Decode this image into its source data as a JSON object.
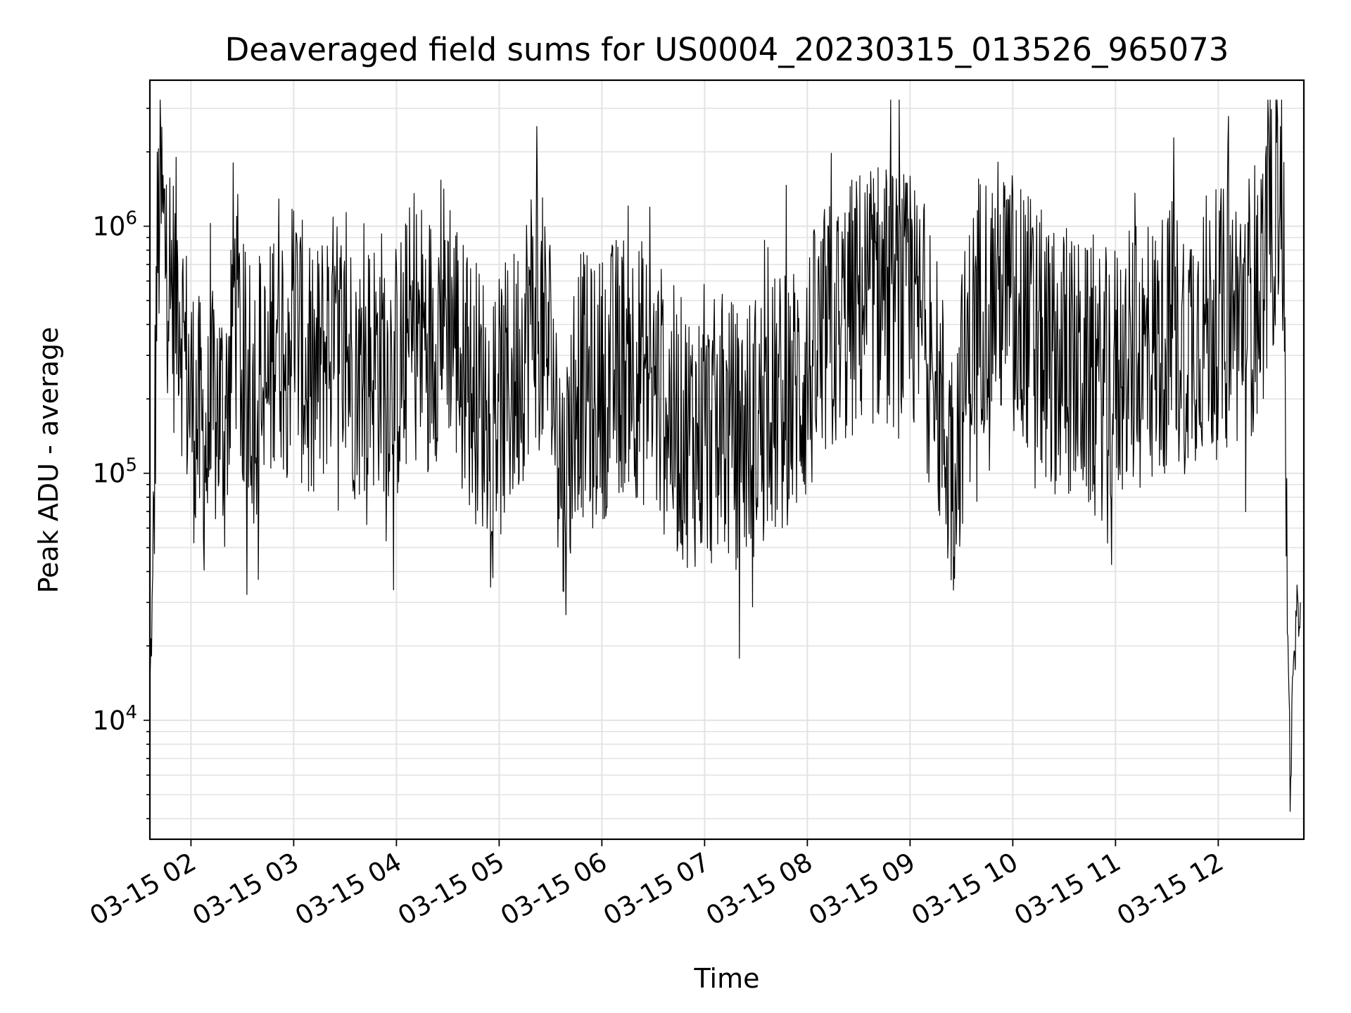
{
  "chart_data": {
    "type": "line",
    "title": "Deaveraged field sums for US0004_20230315_013526_965073",
    "xlabel": "Time",
    "ylabel": "Peak ADU - average",
    "yscale": "log",
    "ylim": [
      3300,
      3900000
    ],
    "xlim": [
      "2023-03-15 01:36",
      "2023-03-15 12:50"
    ],
    "grid": true,
    "line_color": "#000000",
    "x_ticks": [
      {
        "t": "2023-03-15 02:00",
        "label": "03-15 02"
      },
      {
        "t": "2023-03-15 03:00",
        "label": "03-15 03"
      },
      {
        "t": "2023-03-15 04:00",
        "label": "03-15 04"
      },
      {
        "t": "2023-03-15 05:00",
        "label": "03-15 05"
      },
      {
        "t": "2023-03-15 06:00",
        "label": "03-15 06"
      },
      {
        "t": "2023-03-15 07:00",
        "label": "03-15 07"
      },
      {
        "t": "2023-03-15 08:00",
        "label": "03-15 08"
      },
      {
        "t": "2023-03-15 09:00",
        "label": "03-15 09"
      },
      {
        "t": "2023-03-15 10:00",
        "label": "03-15 10"
      },
      {
        "t": "2023-03-15 11:00",
        "label": "03-15 11"
      },
      {
        "t": "2023-03-15 12:00",
        "label": "03-15 12"
      }
    ],
    "y_ticks": [
      {
        "value": 10000,
        "base": "10",
        "exp": "4"
      },
      {
        "value": 100000,
        "base": "10",
        "exp": "5"
      },
      {
        "value": 1000000,
        "base": "10",
        "exp": "6"
      }
    ],
    "series": [
      {
        "points": [
          [
            "2023-03-15 01:36",
            13000
          ],
          [
            "2023-03-15 01:38",
            40000
          ],
          [
            "2023-03-15 01:40",
            600000
          ],
          [
            "2023-03-15 01:42",
            1400000
          ],
          [
            "2023-03-15 01:44",
            900000
          ],
          [
            "2023-03-15 01:47",
            700000
          ],
          [
            "2023-03-15 01:50",
            500000
          ],
          [
            "2023-03-15 01:53",
            600000
          ],
          [
            "2023-03-15 01:56",
            300000
          ],
          [
            "2023-03-15 02:00",
            200000
          ],
          [
            "2023-03-15 02:05",
            150000
          ],
          [
            "2023-03-15 02:10",
            120000
          ],
          [
            "2023-03-15 02:15",
            200000
          ],
          [
            "2023-03-15 02:20",
            150000
          ],
          [
            "2023-03-15 02:25",
            600000
          ],
          [
            "2023-03-15 02:30",
            250000
          ],
          [
            "2023-03-15 02:35",
            200000
          ],
          [
            "2023-03-15 02:40",
            250000
          ],
          [
            "2023-03-15 02:45",
            200000
          ],
          [
            "2023-03-15 02:50",
            500000
          ],
          [
            "2023-03-15 02:55",
            300000
          ],
          [
            "2023-03-15 03:00",
            450000
          ],
          [
            "2023-03-15 03:10",
            200000
          ],
          [
            "2023-03-15 03:20",
            350000
          ],
          [
            "2023-03-15 03:30",
            300000
          ],
          [
            "2023-03-15 03:40",
            250000
          ],
          [
            "2023-03-15 03:50",
            300000
          ],
          [
            "2023-03-15 04:00",
            250000
          ],
          [
            "2023-03-15 04:10",
            400000
          ],
          [
            "2023-03-15 04:20",
            350000
          ],
          [
            "2023-03-15 04:30",
            500000
          ],
          [
            "2023-03-15 04:40",
            250000
          ],
          [
            "2023-03-15 04:50",
            200000
          ],
          [
            "2023-03-15 05:00",
            180000
          ],
          [
            "2023-03-15 05:10",
            250000
          ],
          [
            "2023-03-15 05:20",
            500000
          ],
          [
            "2023-03-15 05:30",
            300000
          ],
          [
            "2023-03-15 05:38",
            80000
          ],
          [
            "2023-03-15 05:45",
            250000
          ],
          [
            "2023-03-15 05:55",
            200000
          ],
          [
            "2023-03-15 06:05",
            250000
          ],
          [
            "2023-03-15 06:15",
            300000
          ],
          [
            "2023-03-15 06:25",
            250000
          ],
          [
            "2023-03-15 06:35",
            200000
          ],
          [
            "2023-03-15 06:45",
            150000
          ],
          [
            "2023-03-15 07:00",
            140000
          ],
          [
            "2023-03-15 07:10",
            150000
          ],
          [
            "2023-03-15 07:20",
            140000
          ],
          [
            "2023-03-15 07:30",
            160000
          ],
          [
            "2023-03-15 07:40",
            180000
          ],
          [
            "2023-03-15 07:50",
            200000
          ],
          [
            "2023-03-15 08:00",
            250000
          ],
          [
            "2023-03-15 08:10",
            350000
          ],
          [
            "2023-03-15 08:20",
            400000
          ],
          [
            "2023-03-15 08:30",
            500000
          ],
          [
            "2023-03-15 08:40",
            550000
          ],
          [
            "2023-03-15 08:50",
            500000
          ],
          [
            "2023-03-15 09:00",
            450000
          ],
          [
            "2023-03-15 09:10",
            350000
          ],
          [
            "2023-03-15 09:20",
            150000
          ],
          [
            "2023-03-15 09:25",
            100000
          ],
          [
            "2023-03-15 09:30",
            200000
          ],
          [
            "2023-03-15 09:40",
            500000
          ],
          [
            "2023-03-15 09:50",
            550000
          ],
          [
            "2023-03-15 10:00",
            500000
          ],
          [
            "2023-03-15 10:10",
            400000
          ],
          [
            "2023-03-15 10:20",
            300000
          ],
          [
            "2023-03-15 10:30",
            280000
          ],
          [
            "2023-03-15 10:40",
            250000
          ],
          [
            "2023-03-15 10:50",
            220000
          ],
          [
            "2023-03-15 11:00",
            250000
          ],
          [
            "2023-03-15 11:10",
            280000
          ],
          [
            "2023-03-15 11:20",
            300000
          ],
          [
            "2023-03-15 11:30",
            350000
          ],
          [
            "2023-03-15 11:40",
            350000
          ],
          [
            "2023-03-15 11:50",
            400000
          ],
          [
            "2023-03-15 12:00",
            400000
          ],
          [
            "2023-03-15 12:10",
            450000
          ],
          [
            "2023-03-15 12:20",
            500000
          ],
          [
            "2023-03-15 12:30",
            800000
          ],
          [
            "2023-03-15 12:36",
            1800000
          ],
          [
            "2023-03-15 12:38",
            1000000
          ],
          [
            "2023-03-15 12:40",
            40000
          ],
          [
            "2023-03-15 12:42",
            6000
          ],
          [
            "2023-03-15 12:44",
            15000
          ],
          [
            "2023-03-15 12:46",
            25000
          ],
          [
            "2023-03-15 12:48",
            30000
          ]
        ]
      }
    ]
  }
}
